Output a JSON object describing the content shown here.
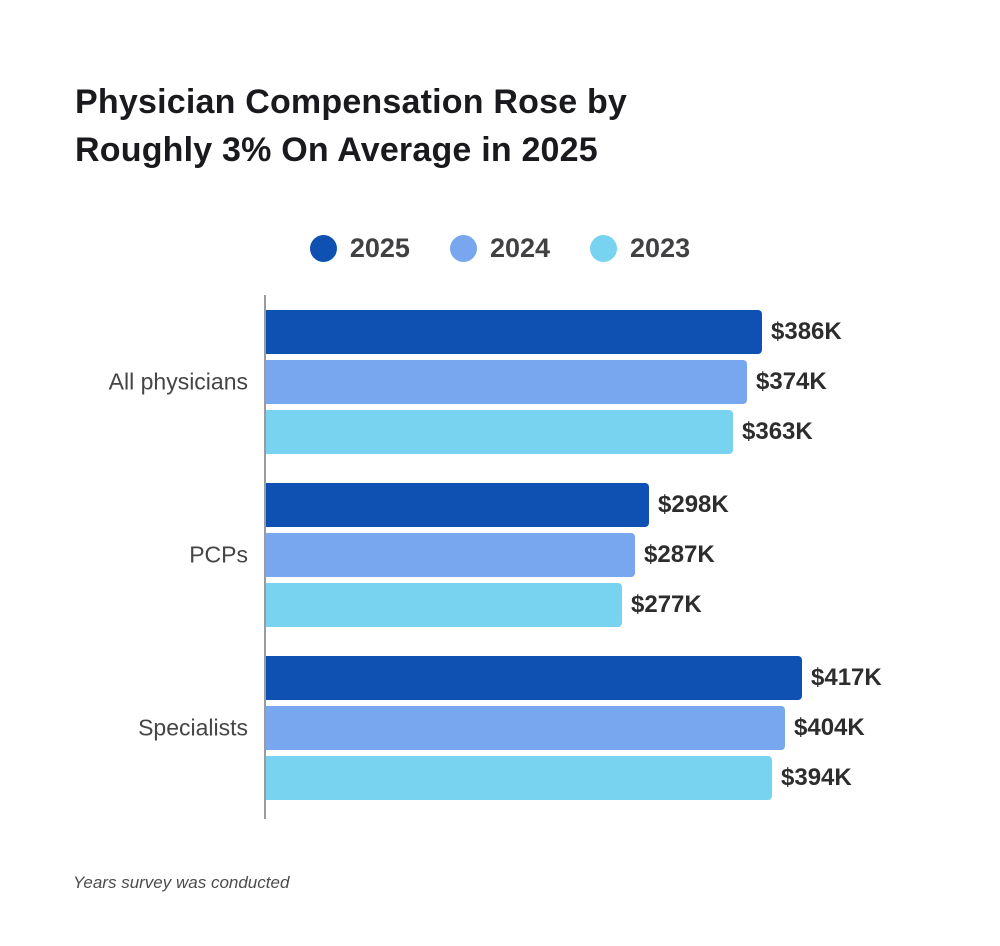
{
  "chart_data": {
    "type": "bar",
    "orientation": "horizontal",
    "title": "Physician Compensation Rose by Roughly 3% On Average in 2025",
    "title_lines": [
      "Physician Compensation Rose by",
      "Roughly 3% On Average in 2025"
    ],
    "caption": "Years survey was conducted",
    "categories": [
      "All physicians",
      "PCPs",
      "Specialists"
    ],
    "series": [
      {
        "name": "2025",
        "color": "#0e51b2",
        "values": [
          386,
          298,
          417
        ],
        "labels": [
          "$386K",
          "$298K",
          "$417K"
        ]
      },
      {
        "name": "2024",
        "color": "#78a6ef",
        "values": [
          374,
          287,
          404
        ],
        "labels": [
          "$374K",
          "$287K",
          "$404K"
        ]
      },
      {
        "name": "2023",
        "color": "#77d3f0",
        "values": [
          363,
          277,
          394
        ],
        "labels": [
          "$363K",
          "$277K",
          "$394K"
        ]
      }
    ],
    "value_unit": "$K",
    "xlim": [
      0,
      417
    ],
    "grid": false,
    "legend_position": "top-center",
    "axis_color": "#9b9b9b"
  }
}
